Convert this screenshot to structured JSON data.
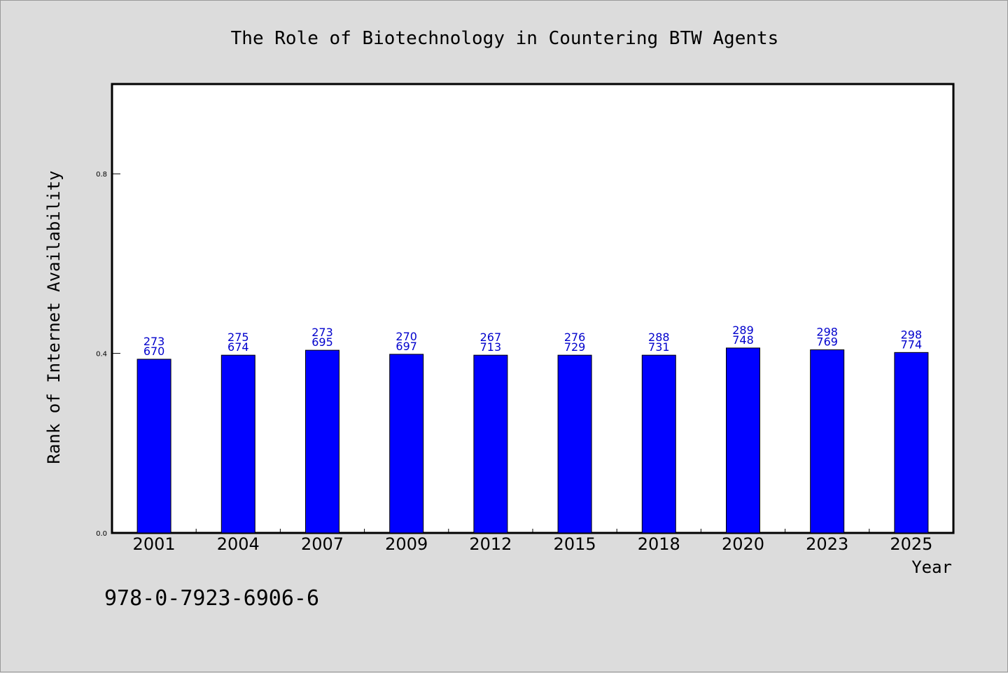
{
  "chart_data": {
    "type": "bar",
    "title": "The Role of Biotechnology in Countering BTW Agents",
    "xlabel": "Year",
    "ylabel": "Rank of Internet Availability",
    "categories": [
      "2001",
      "2004",
      "2007",
      "2009",
      "2012",
      "2015",
      "2018",
      "2020",
      "2023",
      "2025"
    ],
    "values": [
      0.387,
      0.396,
      0.407,
      0.398,
      0.396,
      0.396,
      0.396,
      0.412,
      0.408,
      0.402
    ],
    "annotations_top": [
      "273",
      "275",
      "273",
      "270",
      "267",
      "276",
      "288",
      "289",
      "298",
      "298"
    ],
    "annotations_bottom": [
      "670",
      "674",
      "695",
      "697",
      "713",
      "729",
      "731",
      "748",
      "769",
      "774"
    ],
    "yticks": [
      "0.0",
      "0.4",
      "0.8"
    ],
    "ytick_values": [
      0.0,
      0.4,
      0.8
    ],
    "ylim": [
      0,
      1.0
    ],
    "grid": false,
    "bar_color": "#0000ff",
    "label_color": "#0000cc"
  },
  "footer": {
    "isbn": "978-0-7923-6906-6"
  }
}
